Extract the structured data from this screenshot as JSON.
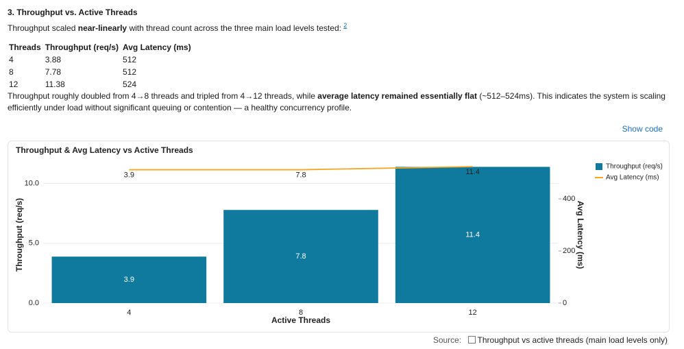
{
  "heading": "3. Throughput vs. Active Threads",
  "intro": {
    "before": "Throughput scaled ",
    "bold": "near-linearly",
    "after": " with thread count across the three main load levels tested: ",
    "footnote": "2"
  },
  "table": {
    "header": [
      "Threads",
      "Throughput (req/s)",
      "Avg Latency (ms)"
    ],
    "rows": [
      [
        4,
        3.88,
        512
      ],
      [
        8,
        7.78,
        512
      ],
      [
        12,
        11.38,
        524
      ]
    ]
  },
  "summary": {
    "before": "Throughput roughly doubled from 4→8 threads and tripled from 4→12 threads, while ",
    "bold": "average latency remained essentially flat",
    "after": " (~512–524ms). This indicates the system is scaling efficiently under load without significant queuing or contention — a healthy concurrency profile."
  },
  "show_code": "Show code",
  "chart_data": {
    "type": "bar",
    "title": "Throughput & Avg Latency vs Active Threads",
    "x_label": "Active Threads",
    "y_label": "Throughput (req/s)",
    "y2_label": "Avg Latency (ms)",
    "categories": [
      "4",
      "8",
      "12"
    ],
    "series": [
      {
        "name": "Throughput (req/s)",
        "type": "bar",
        "color": "#0f7a9d",
        "values": [
          3.88,
          7.78,
          11.38
        ],
        "value_labels": [
          "3.9",
          "7.8",
          "11.4"
        ]
      },
      {
        "name": "Avg Latency (ms)",
        "type": "line",
        "axis": "y2",
        "color": "#f5a623",
        "values": [
          512,
          512,
          524
        ]
      }
    ],
    "ylim": [
      0,
      11.4
    ],
    "yticks": [
      {
        "value": 0,
        "label": "0.0"
      },
      {
        "value": 5,
        "label": "5.0"
      },
      {
        "value": 10,
        "label": "10.0"
      }
    ],
    "y2lim": [
      0,
      524
    ],
    "y2ticks": [
      0,
      200,
      400
    ],
    "grid": true,
    "legend": "top-right"
  },
  "source": {
    "label": "Source:",
    "text": "Throughput vs active threads (main load levels only)"
  }
}
